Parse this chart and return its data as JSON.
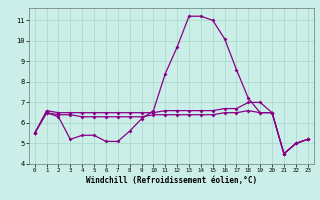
{
  "xlabel": "Windchill (Refroidissement éolien,°C)",
  "background_color": "#cceee8",
  "grid_color": "#aaddcc",
  "line_color": "#880088",
  "x": [
    0,
    1,
    2,
    3,
    4,
    5,
    6,
    7,
    8,
    9,
    10,
    11,
    12,
    13,
    14,
    15,
    16,
    17,
    18,
    19,
    20,
    21,
    22,
    23
  ],
  "line1": [
    5.5,
    6.5,
    6.3,
    5.2,
    5.4,
    5.4,
    5.1,
    5.1,
    5.6,
    6.2,
    6.6,
    8.4,
    9.7,
    11.2,
    11.2,
    11.0,
    10.1,
    8.6,
    7.2,
    6.5,
    6.5,
    4.5,
    5.0,
    5.2
  ],
  "line2": [
    5.5,
    6.6,
    6.5,
    6.5,
    6.5,
    6.5,
    6.5,
    6.5,
    6.5,
    6.5,
    6.5,
    6.6,
    6.6,
    6.6,
    6.6,
    6.6,
    6.7,
    6.7,
    7.0,
    7.0,
    6.5,
    4.5,
    5.0,
    5.2
  ],
  "line3": [
    5.5,
    6.5,
    6.4,
    6.4,
    6.3,
    6.3,
    6.3,
    6.3,
    6.3,
    6.3,
    6.4,
    6.4,
    6.4,
    6.4,
    6.4,
    6.4,
    6.5,
    6.5,
    6.6,
    6.5,
    6.5,
    4.5,
    5.0,
    5.2
  ],
  "ylim": [
    4,
    11.6
  ],
  "xlim": [
    -0.5,
    23.5
  ],
  "yticks": [
    4,
    5,
    6,
    7,
    8,
    9,
    10,
    11
  ],
  "xticks": [
    0,
    1,
    2,
    3,
    4,
    5,
    6,
    7,
    8,
    9,
    10,
    11,
    12,
    13,
    14,
    15,
    16,
    17,
    18,
    19,
    20,
    21,
    22,
    23
  ]
}
